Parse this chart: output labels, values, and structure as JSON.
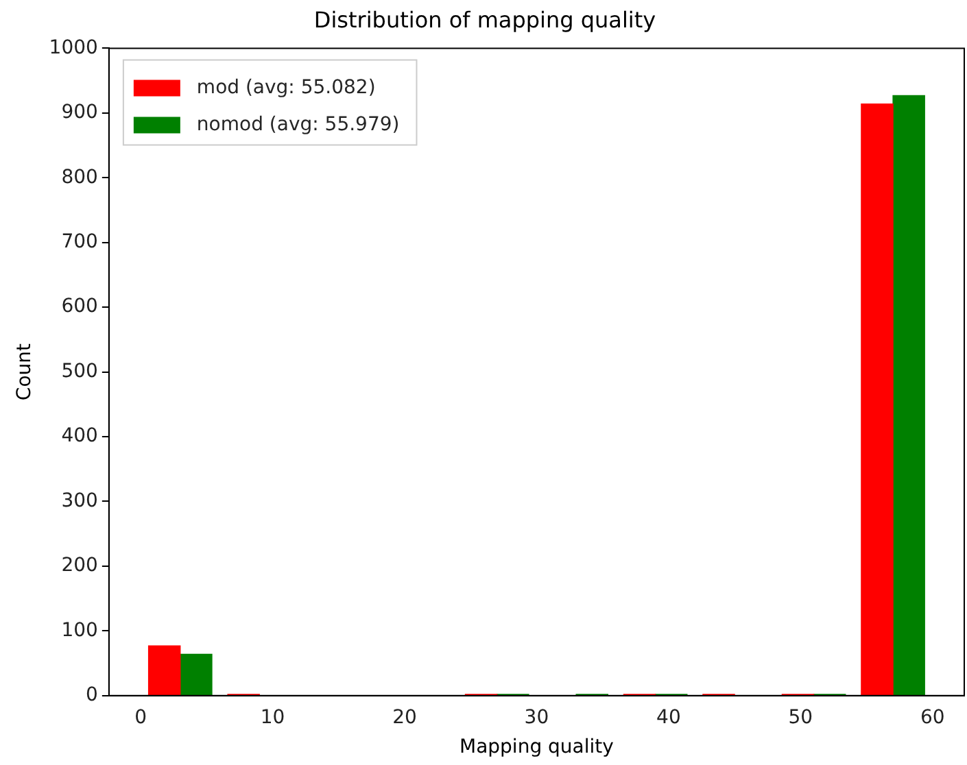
{
  "chart_data": {
    "type": "histogram",
    "title": "Distribution of mapping quality",
    "xlabel": "Mapping quality",
    "ylabel": "Count",
    "bins": [
      0,
      6,
      12,
      18,
      24,
      30,
      36,
      42,
      48,
      54,
      60
    ],
    "series": [
      {
        "name": "mod (avg: 55.082)",
        "color": "#ff0000",
        "values": [
          77,
          2,
          0,
          0,
          2,
          0,
          2,
          2,
          2,
          914
        ]
      },
      {
        "name": "nomod (avg: 55.979)",
        "color": "#008000",
        "values": [
          64,
          0,
          0,
          0,
          2,
          2,
          2,
          0,
          2,
          927
        ]
      }
    ],
    "xlim": [
      -2.4,
      62.4
    ],
    "xticks": [
      0,
      10,
      20,
      30,
      40,
      50,
      60
    ],
    "ylim": [
      0,
      1000
    ],
    "yticks": [
      0,
      100,
      200,
      300,
      400,
      500,
      600,
      700,
      800,
      900,
      1000
    ],
    "legend": "top left",
    "grid": false
  }
}
